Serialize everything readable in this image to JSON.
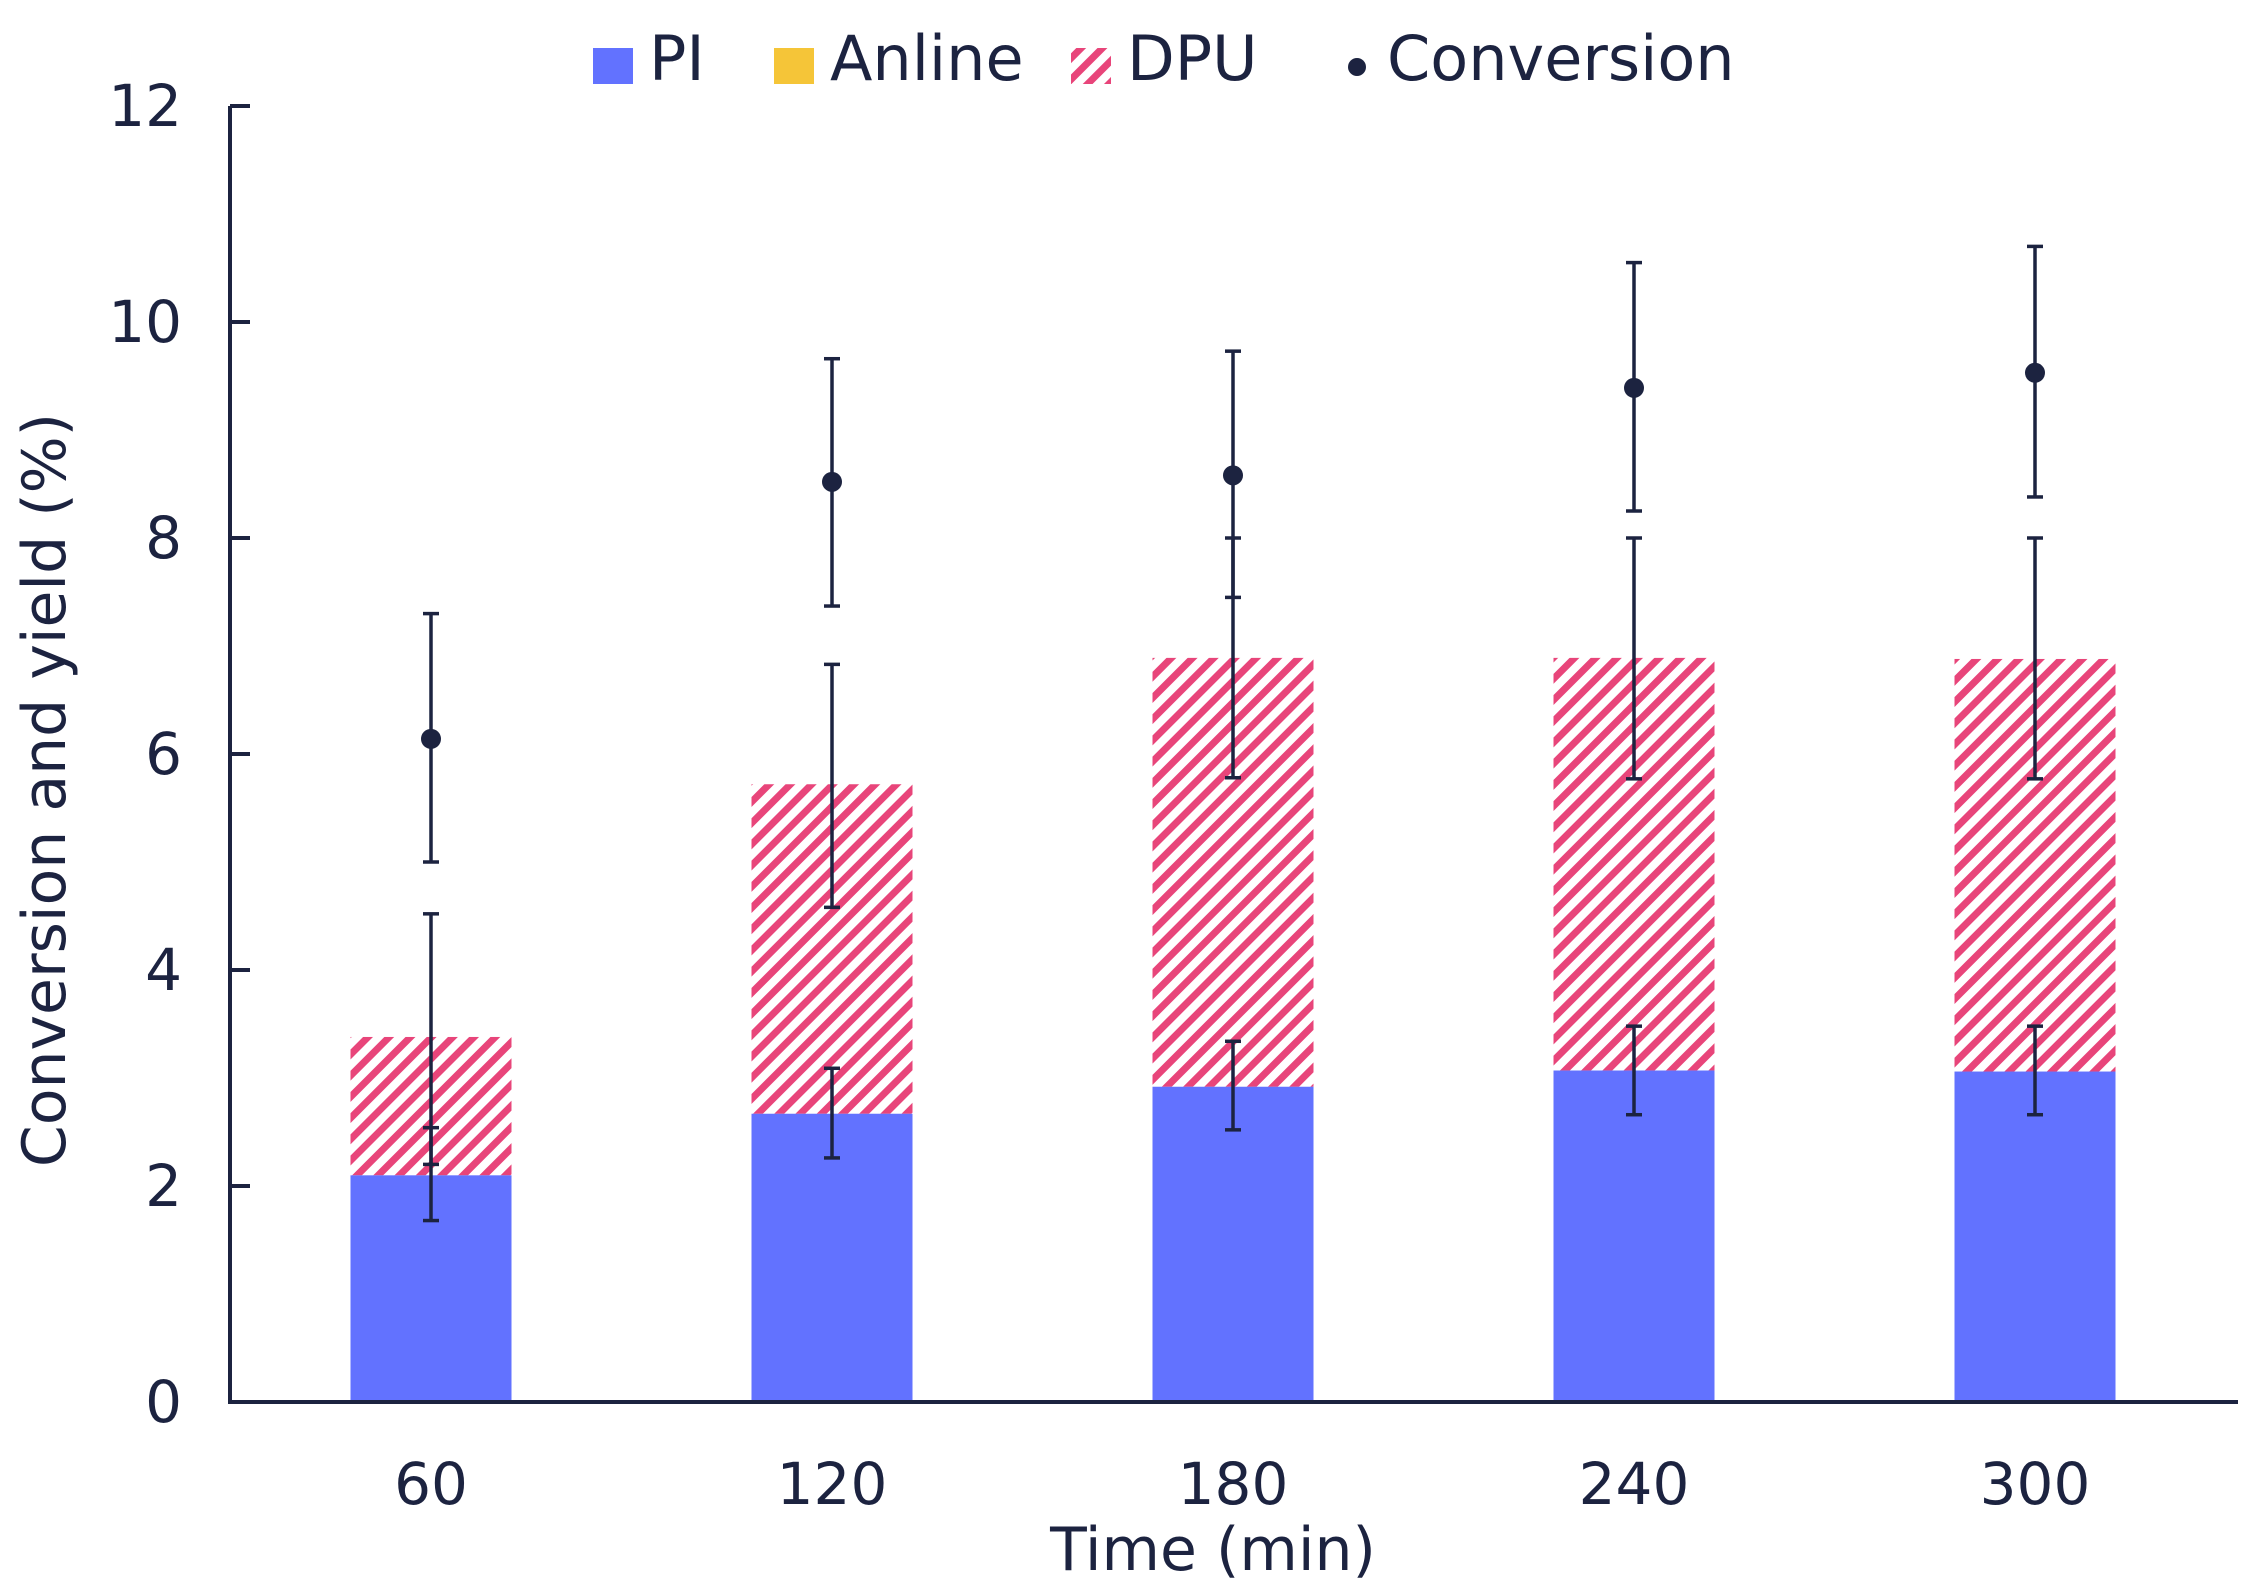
{
  "chart_data": {
    "type": "bar",
    "stacked": true,
    "title": "",
    "xlabel": "Time (min)",
    "ylabel": "Conversion and yield (%)",
    "categories": [
      "60",
      "120",
      "180",
      "240",
      "300"
    ],
    "ylim": [
      0,
      12
    ],
    "yticks": [
      "0",
      "2",
      "4",
      "6",
      "8",
      "10",
      "12"
    ],
    "grid": false,
    "legend_position": "top",
    "series": [
      {
        "name": "PI",
        "kind": "bar",
        "color": "#6272ff",
        "pattern": "solid",
        "values": [
          2.1,
          2.67,
          2.92,
          3.07,
          3.06
        ],
        "err_low": [
          1.68,
          2.26,
          2.52,
          2.66,
          2.66
        ],
        "err_high": [
          2.54,
          3.09,
          3.34,
          3.48,
          3.48
        ]
      },
      {
        "name": "Anline",
        "kind": "bar",
        "color": "#f5c538",
        "pattern": "solid",
        "values": [
          0,
          0,
          0,
          0,
          0
        ],
        "err_low": [
          2.1,
          2.67,
          2.92,
          3.07,
          3.06
        ],
        "err_high": [
          2.1,
          2.67,
          2.92,
          3.07,
          3.06
        ]
      },
      {
        "name": "DPU",
        "kind": "bar",
        "color": "#e8457a",
        "pattern": "hatch",
        "values": [
          1.28,
          3.05,
          3.97,
          3.82,
          3.82
        ],
        "err_low": [
          2.2,
          4.58,
          5.78,
          5.77,
          5.77
        ],
        "err_high": [
          4.52,
          6.83,
          8.0,
          8.0,
          8.0
        ]
      },
      {
        "name": "Conversion",
        "kind": "point",
        "color": "#1c2340",
        "values": [
          6.14,
          8.52,
          8.58,
          9.39,
          9.53
        ],
        "err_low": [
          5.0,
          7.37,
          7.45,
          8.25,
          8.38
        ],
        "err_high": [
          7.3,
          9.66,
          9.73,
          10.55,
          10.7
        ]
      }
    ]
  }
}
